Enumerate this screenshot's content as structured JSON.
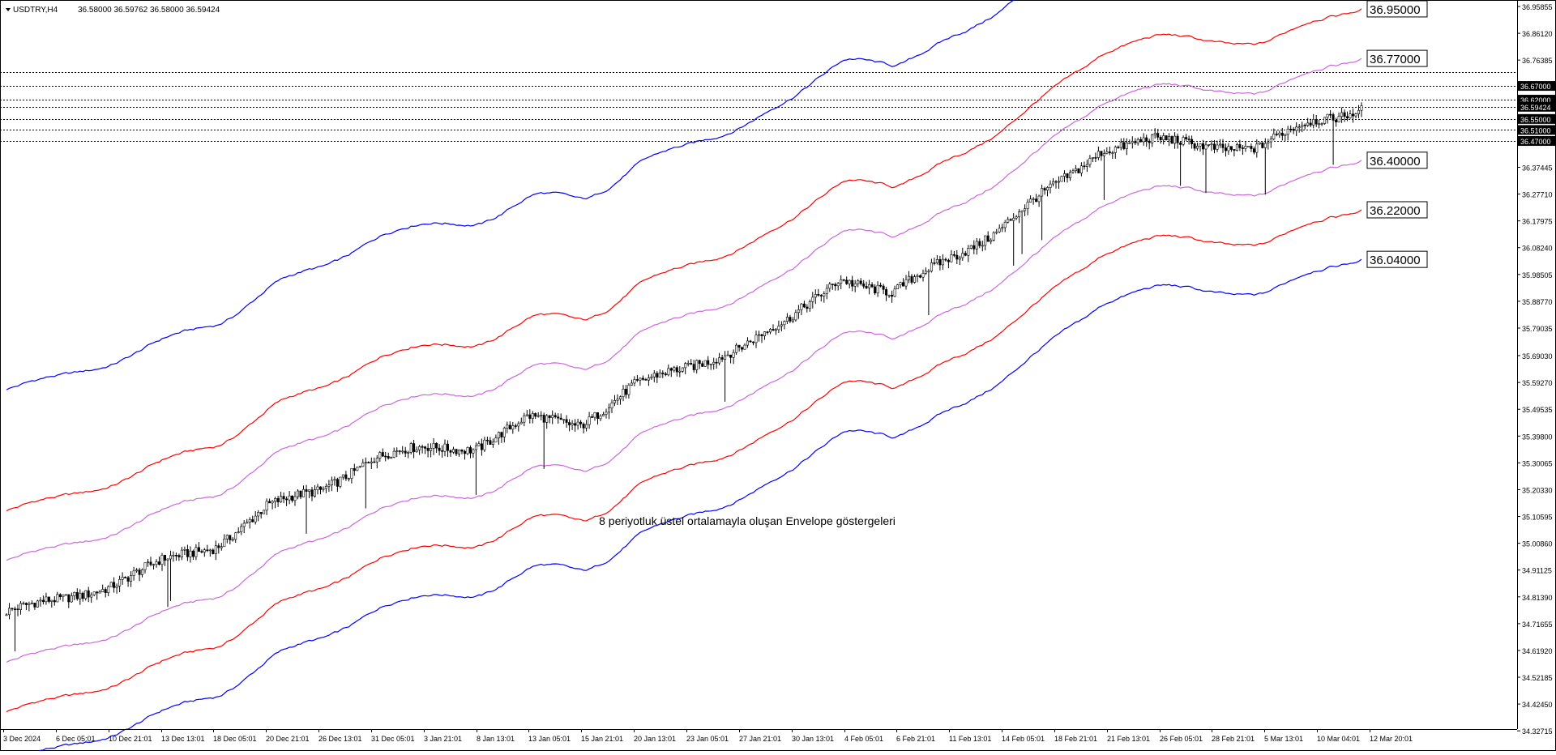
{
  "header": {
    "symbol_label": "USDTRY,H4",
    "ohlc_label": "36.58000 36.59762 36.58000 36.59424"
  },
  "annotation": {
    "text": "8 periyotluk üstel ortalamayla oluşan Envelope göstergeleri"
  },
  "colors": {
    "envelope_outer": "#0000ff",
    "envelope_middle": "#ff0000",
    "envelope_inner": "#cc66dd",
    "candles": "#000000",
    "axis_label_bg": "#000000",
    "axis_label_text": "#ffffff",
    "callout_border": "#000000"
  },
  "chart_data": {
    "type": "candlestick",
    "symbol": "USDTRY",
    "timeframe": "H4",
    "ylim": [
      34.3277,
      36.9586
    ],
    "y_ticks": [
      "36.95855",
      "36.86120",
      "36.76385",
      "36.67000",
      "36.62000",
      "36.59424",
      "36.55000",
      "36.51000",
      "36.47000",
      "36.37445",
      "36.27710",
      "36.17975",
      "36.08240",
      "35.98505",
      "35.88770",
      "35.79035",
      "35.69030",
      "35.59270",
      "35.49535",
      "35.39800",
      "35.30065",
      "35.20330",
      "35.10595",
      "35.00860",
      "34.91125",
      "34.81390",
      "34.71655",
      "34.61920",
      "34.52185",
      "34.42450",
      "34.32715"
    ],
    "highlighted_levels": [
      {
        "value": 36.72,
        "label": "36.72000"
      },
      {
        "value": 36.67,
        "label": "36.67000"
      },
      {
        "value": 36.62,
        "label": "36.62000"
      },
      {
        "value": 36.59424,
        "label": "36.59424"
      },
      {
        "value": 36.55,
        "label": "36.55000"
      },
      {
        "value": 36.51,
        "label": "36.51000"
      },
      {
        "value": 36.47,
        "label": "36.47000"
      }
    ],
    "x_tick_labels": [
      "3 Dec 2024",
      "6 Dec 05:01",
      "10 Dec 21:01",
      "13 Dec 13:01",
      "18 Dec 05:01",
      "20 Dec 21:01",
      "26 Dec 13:01",
      "31 Dec 05:01",
      "3 Jan 21:01",
      "8 Jan 13:01",
      "13 Jan 05:01",
      "15 Jan 21:01",
      "20 Jan 13:01",
      "23 Jan 05:01",
      "27 Jan 21:01",
      "30 Jan 13:01",
      "4 Feb 05:01",
      "6 Feb 21:01",
      "11 Feb 13:01",
      "14 Feb 05:01",
      "18 Feb 21:01",
      "21 Feb 13:01",
      "26 Feb 05:01",
      "28 Feb 21:01",
      "5 Mar 13:01",
      "10 Mar 04:01",
      "12 Mar 20:01"
    ],
    "price_series": {
      "name": "USDTRY close (approx.)",
      "x": [
        "3 Dec 2024",
        "6 Dec 05:01",
        "10 Dec 21:01",
        "13 Dec 13:01",
        "18 Dec 05:01",
        "20 Dec 21:01",
        "26 Dec 13:01",
        "31 Dec 05:01",
        "3 Jan 21:01",
        "8 Jan 13:01",
        "13 Jan 05:01",
        "15 Jan 21:01",
        "20 Jan 13:01",
        "23 Jan 05:01",
        "27 Jan 21:01",
        "30 Jan 13:01",
        "4 Feb 05:01",
        "6 Feb 21:01",
        "11 Feb 13:01",
        "14 Feb 05:01",
        "18 Feb 21:01",
        "21 Feb 13:01",
        "26 Feb 05:01",
        "28 Feb 21:01",
        "5 Mar 13:01",
        "10 Mar 04:01",
        "12 Mar 20:01"
      ],
      "values": [
        34.76,
        34.8,
        34.86,
        34.94,
        35.0,
        35.14,
        35.2,
        35.32,
        35.35,
        35.36,
        35.46,
        35.44,
        35.58,
        35.64,
        35.72,
        35.81,
        35.98,
        35.91,
        36.04,
        36.14,
        36.29,
        36.44,
        36.47,
        36.46,
        36.44,
        36.54,
        36.59
      ]
    },
    "envelopes": {
      "period": 8,
      "method": "exponential",
      "pairs": [
        {
          "name": "outer",
          "color": "#0000ff",
          "upper_end": 36.95,
          "lower_end": 36.04
        },
        {
          "name": "middle",
          "color": "#ff0000",
          "upper_end": 36.95,
          "lower_end": 36.22
        },
        {
          "name": "inner",
          "color": "#cc66dd",
          "upper_end": 36.77,
          "lower_end": 36.4
        }
      ]
    },
    "callouts": [
      {
        "value": 36.95,
        "label": "36.95000"
      },
      {
        "value": 36.77,
        "label": "36.77000"
      },
      {
        "value": 36.4,
        "label": "36.40000"
      },
      {
        "value": 36.22,
        "label": "36.22000"
      },
      {
        "value": 36.04,
        "label": "36.04000"
      }
    ]
  }
}
